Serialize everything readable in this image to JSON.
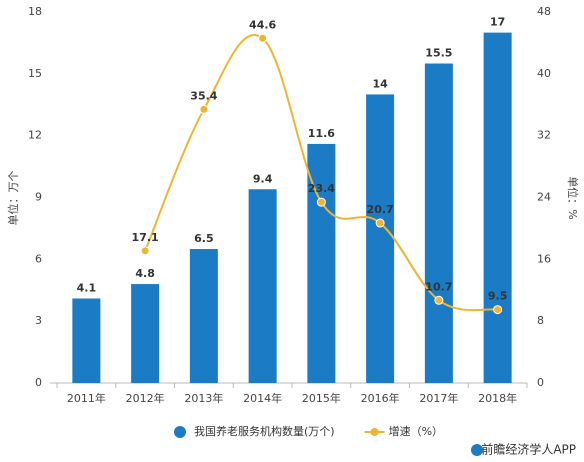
{
  "chart_data": {
    "type": "bar",
    "categories": [
      "2011年",
      "2012年",
      "2013年",
      "2014年",
      "2015年",
      "2016年",
      "2017年",
      "2018年"
    ],
    "series": [
      {
        "name": "我国养老服务机构数量(万个)",
        "color": "#1b7bc4",
        "values": [
          4.1,
          4.8,
          6.5,
          9.4,
          11.6,
          14,
          15.5,
          17
        ]
      },
      {
        "name": "增速（%）",
        "color": "#f0b434",
        "axis": "y2",
        "values": [
          null,
          17.1,
          35.4,
          44.6,
          23.4,
          20.7,
          10.7,
          9.5
        ]
      }
    ],
    "ylabel": "单位：万个",
    "y2label": "单位：%",
    "ylim": [
      0,
      18
    ],
    "yticks": [
      0,
      3,
      6,
      9,
      12,
      15,
      18
    ],
    "y2lim": [
      0,
      48
    ],
    "y2ticks": [
      0,
      8,
      16,
      24,
      32,
      40,
      48
    ],
    "legend": "bottom",
    "watermark": "前瞻经济学人APP"
  }
}
